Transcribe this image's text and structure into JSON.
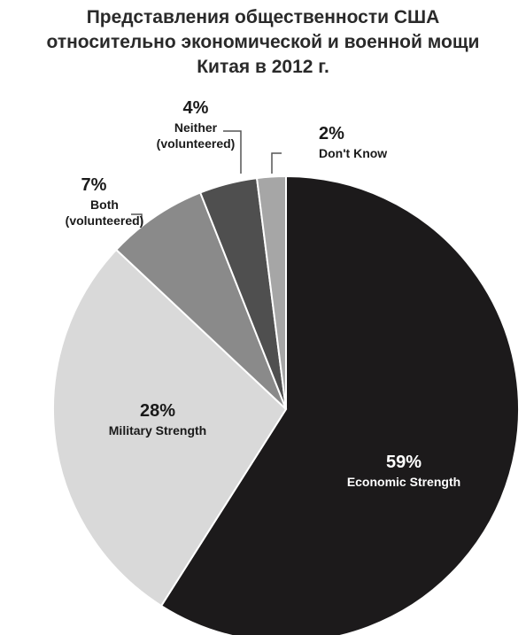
{
  "chart_data": {
    "type": "pie",
    "title_lines": [
      "Представления общественности США",
      "относительно экономической и военной мощи",
      "Китая в 2012 г."
    ],
    "start_angle_deg": 0,
    "direction": "clockwise",
    "slices": [
      {
        "pct_label": "59%",
        "name_lines": [
          "Economic Strength"
        ],
        "value": 59,
        "color": "#1c1a1b",
        "text_color": "#ffffff"
      },
      {
        "pct_label": "28%",
        "name_lines": [
          "Military Strength"
        ],
        "value": 28,
        "color": "#d9d9d9",
        "text_color": "#1a1a1a"
      },
      {
        "pct_label": "7%",
        "name_lines": [
          "Both",
          "(volunteered)"
        ],
        "value": 7,
        "color": "#8a8a8a",
        "text_color": "#1a1a1a"
      },
      {
        "pct_label": "4%",
        "name_lines": [
          "Neither",
          "(volunteered)"
        ],
        "value": 4,
        "color": "#4f4f4f",
        "text_color": "#1a1a1a"
      },
      {
        "pct_label": "2%",
        "name_lines": [
          "Don't Know"
        ],
        "value": 2,
        "color": "#a6a6a6",
        "text_color": "#1a1a1a"
      }
    ]
  }
}
